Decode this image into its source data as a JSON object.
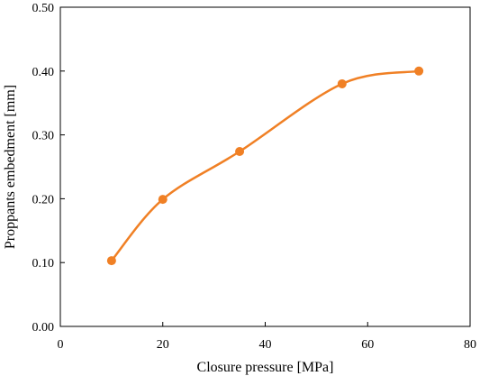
{
  "chart_data": {
    "type": "line",
    "title": "",
    "xlabel": "Closure pressure [MPa]",
    "ylabel": "Proppants embedment [mm]",
    "xlim": [
      0,
      80
    ],
    "ylim": [
      0.0,
      0.5
    ],
    "x_ticks": [
      "0",
      "20",
      "40",
      "60",
      "80"
    ],
    "y_ticks": [
      "0.00",
      "0.10",
      "0.20",
      "0.30",
      "0.40",
      "0.50"
    ],
    "grid": false,
    "smooth": true,
    "series": [
      {
        "color": "#F08025",
        "marker": "circle",
        "x": [
          10,
          20,
          35,
          55,
          70
        ],
        "y": [
          0.103,
          0.199,
          0.274,
          0.38,
          0.4
        ]
      }
    ]
  }
}
